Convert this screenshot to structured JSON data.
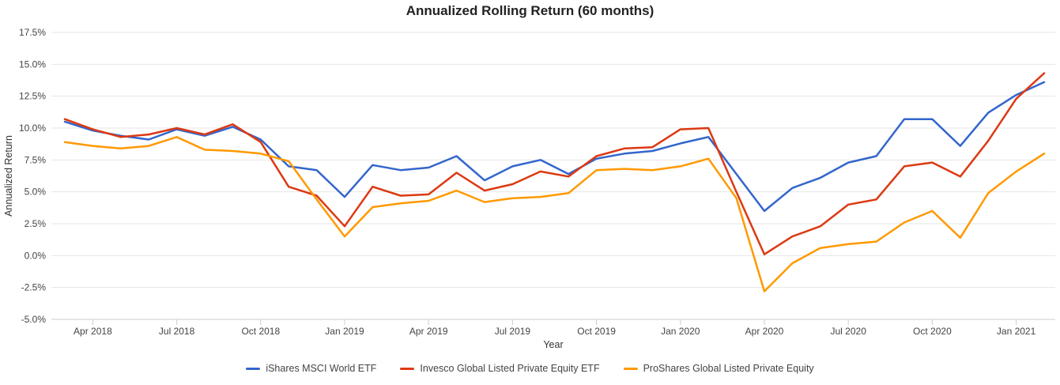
{
  "chart_title": "Annualized Rolling Return (60 months)",
  "chart_data": {
    "type": "line",
    "title": "Annualized Rolling Return (60 months)",
    "xlabel": "Year",
    "ylabel": "Annualized Return",
    "grid": "horizontal",
    "legend_position": "bottom",
    "ylim": [
      -5.0,
      17.5
    ],
    "x": [
      "Mar 2018",
      "Apr 2018",
      "May 2018",
      "Jun 2018",
      "Jul 2018",
      "Aug 2018",
      "Sep 2018",
      "Oct 2018",
      "Nov 2018",
      "Dec 2018",
      "Jan 2019",
      "Feb 2019",
      "Mar 2019",
      "Apr 2019",
      "May 2019",
      "Jun 2019",
      "Jul 2019",
      "Aug 2019",
      "Sep 2019",
      "Oct 2019",
      "Nov 2019",
      "Dec 2019",
      "Jan 2020",
      "Feb 2020",
      "Mar 2020",
      "Apr 2020",
      "May 2020",
      "Jun 2020",
      "Jul 2020",
      "Aug 2020",
      "Sep 2020",
      "Oct 2020",
      "Nov 2020",
      "Dec 2020",
      "Jan 2021",
      "Feb 2021"
    ],
    "x_ticks": [
      {
        "index": 1,
        "label": "Apr 2018"
      },
      {
        "index": 4,
        "label": "Jul 2018"
      },
      {
        "index": 7,
        "label": "Oct 2018"
      },
      {
        "index": 10,
        "label": "Jan 2019"
      },
      {
        "index": 13,
        "label": "Apr 2019"
      },
      {
        "index": 16,
        "label": "Jul 2019"
      },
      {
        "index": 19,
        "label": "Oct 2019"
      },
      {
        "index": 22,
        "label": "Jan 2020"
      },
      {
        "index": 25,
        "label": "Apr 2020"
      },
      {
        "index": 28,
        "label": "Jul 2020"
      },
      {
        "index": 31,
        "label": "Oct 2020"
      },
      {
        "index": 34,
        "label": "Jan 2021"
      }
    ],
    "y_ticks": [
      {
        "value": 17.5,
        "label": "17.5%"
      },
      {
        "value": 15.0,
        "label": "15.0%"
      },
      {
        "value": 12.5,
        "label": "12.5%"
      },
      {
        "value": 10.0,
        "label": "10.0%"
      },
      {
        "value": 7.5,
        "label": "7.5%"
      },
      {
        "value": 5.0,
        "label": "5.0%"
      },
      {
        "value": 2.5,
        "label": "2.5%"
      },
      {
        "value": 0.0,
        "label": "0.0%"
      },
      {
        "value": -2.5,
        "label": "-2.5%"
      },
      {
        "value": -5.0,
        "label": "-5.0%"
      }
    ],
    "series": [
      {
        "name": "iShares MSCI World ETF",
        "color": "#3366CC",
        "values": [
          10.5,
          9.8,
          9.4,
          9.1,
          9.9,
          9.4,
          10.1,
          9.1,
          7.0,
          6.7,
          4.6,
          7.1,
          6.7,
          6.9,
          7.8,
          5.9,
          7.0,
          7.5,
          6.4,
          7.6,
          8.0,
          8.2,
          8.8,
          9.3,
          6.4,
          3.5,
          5.3,
          6.1,
          7.3,
          7.8,
          10.7,
          10.7,
          8.6,
          11.2,
          12.6,
          13.6
        ]
      },
      {
        "name": "Invesco Global Listed Private Equity ETF",
        "color": "#DC3912",
        "values": [
          10.7,
          9.9,
          9.3,
          9.5,
          10.0,
          9.5,
          10.3,
          8.9,
          5.4,
          4.7,
          2.3,
          5.4,
          4.7,
          4.8,
          6.5,
          5.1,
          5.6,
          6.6,
          6.2,
          7.8,
          8.4,
          8.5,
          9.9,
          10.0,
          5.0,
          0.1,
          1.5,
          2.3,
          4.0,
          4.4,
          7.0,
          7.3,
          6.2,
          9.0,
          12.3,
          14.3
        ]
      },
      {
        "name": "ProShares Global Listed Private Equity",
        "color": "#FF9900",
        "values": [
          8.9,
          8.6,
          8.4,
          8.6,
          9.3,
          8.3,
          8.2,
          8.0,
          7.4,
          4.4,
          1.5,
          3.8,
          4.1,
          4.3,
          5.1,
          4.2,
          4.5,
          4.6,
          4.9,
          6.7,
          6.8,
          6.7,
          7.0,
          7.6,
          4.5,
          -2.8,
          -0.6,
          0.6,
          0.9,
          1.1,
          2.6,
          3.5,
          1.4,
          4.9,
          6.6,
          8.0
        ]
      }
    ],
    "style": {
      "gridline_color": "#e6e6e6",
      "axis_line_color": "#cccccc",
      "tick_label_color": "#444444",
      "axis_title_color": "#333333",
      "line_width": 2.5
    }
  }
}
